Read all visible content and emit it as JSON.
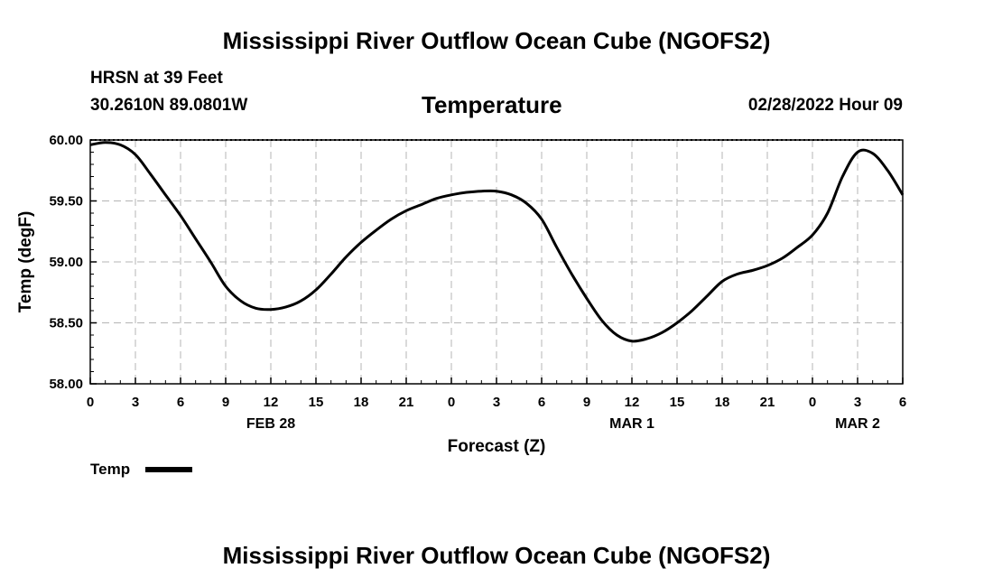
{
  "header": {
    "title": "Mississippi River Outflow Ocean Cube (NGOFS2)",
    "station": "HRSN at 39 Feet",
    "coords": "30.2610N  89.0801W",
    "subtitle": "Temperature",
    "datetime": "02/28/2022 Hour 09"
  },
  "footer": {
    "title": "Mississippi River Outflow Ocean Cube (NGOFS2)"
  },
  "legend": {
    "label": "Temp"
  },
  "chart_data": {
    "type": "line",
    "title": "Temperature",
    "xlabel": "Forecast (Z)",
    "ylabel": "Temp (degF)",
    "xlim": [
      0,
      54
    ],
    "ylim": [
      58.0,
      60.0
    ],
    "grid": true,
    "legend_position": "bottom-left",
    "x_ticks": [
      {
        "x": 0,
        "label": "0"
      },
      {
        "x": 3,
        "label": "3"
      },
      {
        "x": 6,
        "label": "6"
      },
      {
        "x": 9,
        "label": "9"
      },
      {
        "x": 12,
        "label": "12"
      },
      {
        "x": 15,
        "label": "15"
      },
      {
        "x": 18,
        "label": "18"
      },
      {
        "x": 21,
        "label": "21"
      },
      {
        "x": 24,
        "label": "0"
      },
      {
        "x": 27,
        "label": "3"
      },
      {
        "x": 30,
        "label": "6"
      },
      {
        "x": 33,
        "label": "9"
      },
      {
        "x": 36,
        "label": "12"
      },
      {
        "x": 39,
        "label": "15"
      },
      {
        "x": 42,
        "label": "18"
      },
      {
        "x": 45,
        "label": "21"
      },
      {
        "x": 48,
        "label": "0"
      },
      {
        "x": 51,
        "label": "3"
      },
      {
        "x": 54,
        "label": "6"
      }
    ],
    "date_labels": [
      {
        "x": 12,
        "label": "FEB 28"
      },
      {
        "x": 36,
        "label": "MAR 1"
      },
      {
        "x": 51,
        "label": "MAR 2"
      }
    ],
    "y_ticks": [
      {
        "y": 58.0,
        "label": "58.00"
      },
      {
        "y": 58.5,
        "label": "58.50"
      },
      {
        "y": 59.0,
        "label": "59.00"
      },
      {
        "y": 59.5,
        "label": "59.50"
      },
      {
        "y": 60.0,
        "label": "60.00"
      }
    ],
    "series": [
      {
        "name": "Temp",
        "x": [
          0,
          1,
          2,
          3,
          4,
          5,
          6,
          7,
          8,
          9,
          10,
          11,
          12,
          13,
          14,
          15,
          16,
          17,
          18,
          19,
          20,
          21,
          22,
          23,
          24,
          25,
          26,
          27,
          28,
          29,
          30,
          31,
          32,
          33,
          34,
          35,
          36,
          37,
          38,
          39,
          40,
          41,
          42,
          43,
          44,
          45,
          46,
          47,
          48,
          49,
          50,
          51,
          52,
          53,
          54
        ],
        "values": [
          59.96,
          59.98,
          59.96,
          59.88,
          59.72,
          59.55,
          59.38,
          59.19,
          59.0,
          58.8,
          58.68,
          58.62,
          58.61,
          58.63,
          58.68,
          58.77,
          58.9,
          59.04,
          59.16,
          59.26,
          59.35,
          59.42,
          59.47,
          59.52,
          59.55,
          59.57,
          59.58,
          59.58,
          59.55,
          59.48,
          59.35,
          59.12,
          58.9,
          58.7,
          58.52,
          58.4,
          58.35,
          58.37,
          58.42,
          58.5,
          58.6,
          58.72,
          58.84,
          58.9,
          58.93,
          58.97,
          59.03,
          59.12,
          59.22,
          59.4,
          59.7,
          59.9,
          59.89,
          59.75,
          59.55
        ]
      }
    ]
  }
}
